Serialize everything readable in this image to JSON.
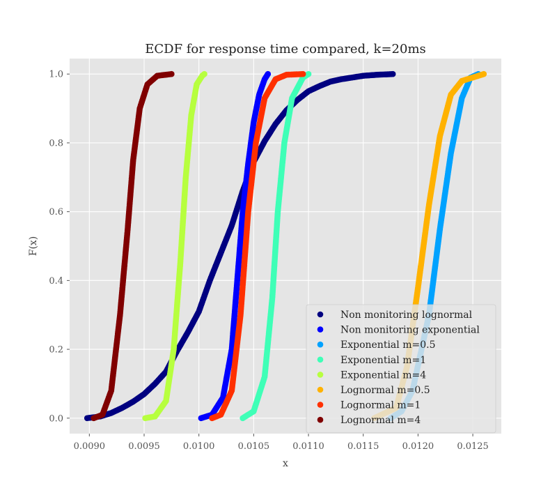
{
  "chart_data": {
    "type": "scatter",
    "title": "ECDF for response time compared, k=20ms",
    "xlabel": "x",
    "ylabel": "F(x)",
    "xlim": [
      0.00882,
      0.01276
    ],
    "ylim": [
      -0.045,
      1.045
    ],
    "x_ticks": [
      "0.0090",
      "0.0095",
      "0.0100",
      "0.0105",
      "0.0110",
      "0.0115",
      "0.0120",
      "0.0125"
    ],
    "y_ticks": [
      "0.0",
      "0.2",
      "0.4",
      "0.6",
      "0.8",
      "1.0"
    ],
    "grid": true,
    "legend_position": "lower-right",
    "series": [
      {
        "name": "Non monitoring lognormal",
        "color": "#000080",
        "points": [
          [
            0.00898,
            0.0
          ],
          [
            0.0091,
            0.005
          ],
          [
            0.0092,
            0.015
          ],
          [
            0.0093,
            0.03
          ],
          [
            0.0094,
            0.048
          ],
          [
            0.0095,
            0.07
          ],
          [
            0.0096,
            0.1
          ],
          [
            0.0097,
            0.135
          ],
          [
            0.0098,
            0.195
          ],
          [
            0.0099,
            0.25
          ],
          [
            0.01,
            0.31
          ],
          [
            0.0101,
            0.4
          ],
          [
            0.0102,
            0.48
          ],
          [
            0.0103,
            0.56
          ],
          [
            0.0104,
            0.66
          ],
          [
            0.0105,
            0.745
          ],
          [
            0.0106,
            0.805
          ],
          [
            0.0107,
            0.855
          ],
          [
            0.0108,
            0.895
          ],
          [
            0.0109,
            0.925
          ],
          [
            0.011,
            0.95
          ],
          [
            0.0111,
            0.965
          ],
          [
            0.0112,
            0.978
          ],
          [
            0.0113,
            0.985
          ],
          [
            0.0114,
            0.99
          ],
          [
            0.0115,
            0.995
          ],
          [
            0.01163,
            0.998
          ],
          [
            0.01177,
            1.0
          ]
        ]
      },
      {
        "name": "Non monitoring exponential",
        "color": "#0000ff",
        "points": [
          [
            0.01002,
            0.0
          ],
          [
            0.01012,
            0.01
          ],
          [
            0.01022,
            0.06
          ],
          [
            0.0103,
            0.2
          ],
          [
            0.01035,
            0.4
          ],
          [
            0.0104,
            0.6
          ],
          [
            0.01045,
            0.74
          ],
          [
            0.0105,
            0.86
          ],
          [
            0.01055,
            0.94
          ],
          [
            0.0106,
            0.985
          ],
          [
            0.01063,
            1.0
          ]
        ]
      },
      {
        "name": "Exponential m=0.5",
        "color": "#00a2ff",
        "points": [
          [
            0.01175,
            0.0
          ],
          [
            0.01185,
            0.02
          ],
          [
            0.01195,
            0.08
          ],
          [
            0.0121,
            0.3
          ],
          [
            0.0122,
            0.55
          ],
          [
            0.0123,
            0.77
          ],
          [
            0.0124,
            0.93
          ],
          [
            0.01248,
            0.99
          ],
          [
            0.01255,
            1.0
          ]
        ]
      },
      {
        "name": "Exponential m=1",
        "color": "#3fffb7",
        "points": [
          [
            0.0104,
            0.0
          ],
          [
            0.0105,
            0.02
          ],
          [
            0.0106,
            0.12
          ],
          [
            0.01067,
            0.35
          ],
          [
            0.01072,
            0.6
          ],
          [
            0.01078,
            0.8
          ],
          [
            0.01085,
            0.93
          ],
          [
            0.01095,
            0.99
          ],
          [
            0.011,
            1.0
          ]
        ]
      },
      {
        "name": "Exponential m=4",
        "color": "#b7ff3f",
        "points": [
          [
            0.00951,
            0.0
          ],
          [
            0.0096,
            0.005
          ],
          [
            0.0097,
            0.05
          ],
          [
            0.00977,
            0.2
          ],
          [
            0.00983,
            0.45
          ],
          [
            0.00988,
            0.7
          ],
          [
            0.00993,
            0.88
          ],
          [
            0.00998,
            0.97
          ],
          [
            0.01003,
            0.995
          ],
          [
            0.01005,
            1.0
          ]
        ]
      },
      {
        "name": "Lognormal m=0.5",
        "color": "#ffb200",
        "points": [
          [
            0.0116,
            0.0
          ],
          [
            0.0118,
            0.03
          ],
          [
            0.0119,
            0.15
          ],
          [
            0.012,
            0.38
          ],
          [
            0.0121,
            0.62
          ],
          [
            0.0122,
            0.82
          ],
          [
            0.0123,
            0.94
          ],
          [
            0.0124,
            0.98
          ],
          [
            0.0126,
            1.0
          ]
        ]
      },
      {
        "name": "Lognormal m=1",
        "color": "#ff3000",
        "points": [
          [
            0.01012,
            0.0
          ],
          [
            0.0102,
            0.01
          ],
          [
            0.0103,
            0.08
          ],
          [
            0.01038,
            0.3
          ],
          [
            0.01045,
            0.6
          ],
          [
            0.01052,
            0.8
          ],
          [
            0.0106,
            0.93
          ],
          [
            0.0107,
            0.985
          ],
          [
            0.0108,
            0.998
          ],
          [
            0.01095,
            1.0
          ]
        ]
      },
      {
        "name": "Lognormal m=4",
        "color": "#800000",
        "points": [
          [
            0.00904,
            0.0
          ],
          [
            0.00912,
            0.01
          ],
          [
            0.0092,
            0.08
          ],
          [
            0.00928,
            0.3
          ],
          [
            0.00935,
            0.55
          ],
          [
            0.0094,
            0.75
          ],
          [
            0.00946,
            0.9
          ],
          [
            0.00953,
            0.97
          ],
          [
            0.00962,
            0.995
          ],
          [
            0.00975,
            1.0
          ]
        ]
      }
    ]
  }
}
